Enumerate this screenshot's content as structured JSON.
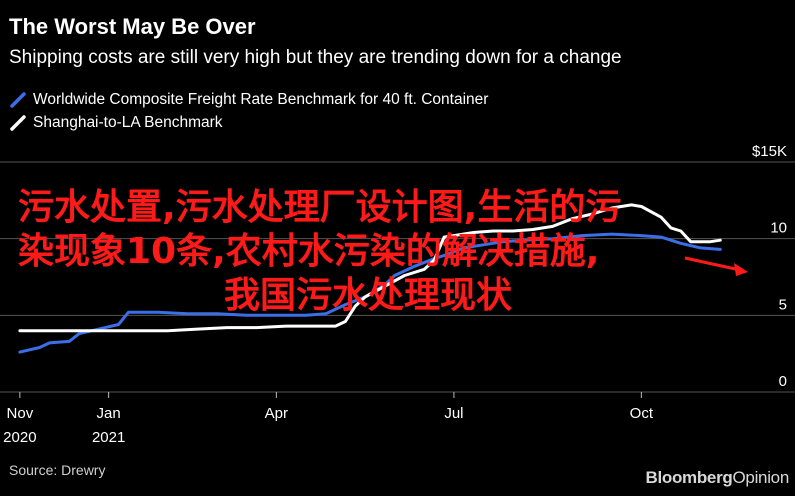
{
  "header": {
    "title": "The Worst May Be Over",
    "subtitle": "Shipping costs are still very high but they are trending down for a change"
  },
  "legend": [
    {
      "label": "Worldwide Composite Freight Rate Benchmark for 40 ft. Container",
      "color": "#3a6fe8"
    },
    {
      "label": "Shanghai-to-LA Benchmark",
      "color": "#ffffff"
    }
  ],
  "footer": {
    "source": "Source: Drewry",
    "brand_bold": "Bloomberg",
    "brand_light": "Opinion"
  },
  "overlay": {
    "line1": "污水处置,污水处理厂设计图,生活的污",
    "line2": "染现象10条,农村水污染的解决措施,",
    "line3": "我国污水处理现状",
    "color": "#ff1a1a"
  },
  "chart_data": {
    "type": "line",
    "title": "The Worst May Be Over",
    "subtitle": "Shipping costs are still very high but they are trending down for a change",
    "x_unit": "weeks from Nov 2020",
    "x_ticks": [
      {
        "x": 0,
        "label": "Nov",
        "sublabel": "2020"
      },
      {
        "x": 9,
        "label": "Jan",
        "sublabel": "2021"
      },
      {
        "x": 26,
        "label": "Apr",
        "sublabel": ""
      },
      {
        "x": 44,
        "label": "Jul",
        "sublabel": ""
      },
      {
        "x": 63,
        "label": "Oct",
        "sublabel": ""
      }
    ],
    "xlim": [
      -1,
      73
    ],
    "ylim": [
      0,
      15
    ],
    "y_ticks": [
      {
        "v": 0,
        "label": "0"
      },
      {
        "v": 5,
        "label": "5"
      },
      {
        "v": 10,
        "label": "10"
      },
      {
        "v": 15,
        "label": "$15K"
      }
    ],
    "grid": true,
    "legend_position": "top-left",
    "series": [
      {
        "name": "Worldwide Composite Freight Rate Benchmark for 40 ft. Container",
        "color": "#3a6fe8",
        "points": [
          [
            0,
            2.6
          ],
          [
            2,
            2.9
          ],
          [
            3,
            3.2
          ],
          [
            5,
            3.3
          ],
          [
            6,
            3.8
          ],
          [
            8,
            4.1
          ],
          [
            10,
            4.4
          ],
          [
            11,
            5.2
          ],
          [
            14,
            5.2
          ],
          [
            17,
            5.1
          ],
          [
            20,
            5.1
          ],
          [
            23,
            5.0
          ],
          [
            26,
            5.0
          ],
          [
            29,
            5.0
          ],
          [
            31,
            5.1
          ],
          [
            33,
            5.7
          ],
          [
            35,
            6.2
          ],
          [
            37,
            7.0
          ],
          [
            38,
            7.6
          ],
          [
            40,
            8.2
          ],
          [
            42,
            8.7
          ],
          [
            43,
            8.9
          ],
          [
            45,
            9.4
          ],
          [
            47,
            9.6
          ],
          [
            49,
            9.8
          ],
          [
            51,
            9.9
          ],
          [
            54,
            10.0
          ],
          [
            57,
            10.2
          ],
          [
            60,
            10.3
          ],
          [
            63,
            10.2
          ],
          [
            65,
            10.1
          ],
          [
            67,
            9.7
          ],
          [
            69,
            9.4
          ],
          [
            71,
            9.3
          ]
        ]
      },
      {
        "name": "Shanghai-to-LA Benchmark",
        "color": "#ffffff",
        "points": [
          [
            0,
            4.0
          ],
          [
            3,
            4.0
          ],
          [
            6,
            4.0
          ],
          [
            9,
            4.0
          ],
          [
            12,
            4.0
          ],
          [
            15,
            4.0
          ],
          [
            18,
            4.1
          ],
          [
            21,
            4.2
          ],
          [
            24,
            4.2
          ],
          [
            27,
            4.3
          ],
          [
            30,
            4.3
          ],
          [
            32,
            4.3
          ],
          [
            33,
            4.6
          ],
          [
            34,
            5.6
          ],
          [
            35,
            6.2
          ],
          [
            37,
            6.9
          ],
          [
            39,
            7.6
          ],
          [
            41,
            8.0
          ],
          [
            42,
            8.6
          ],
          [
            43,
            10.1
          ],
          [
            44,
            10.2
          ],
          [
            46,
            10.4
          ],
          [
            48,
            10.5
          ],
          [
            50,
            10.5
          ],
          [
            52,
            10.6
          ],
          [
            54,
            10.8
          ],
          [
            56,
            11.3
          ],
          [
            58,
            11.6
          ],
          [
            60,
            12.0
          ],
          [
            62,
            12.2
          ],
          [
            63,
            12.1
          ],
          [
            65,
            11.4
          ],
          [
            66,
            10.7
          ],
          [
            67,
            10.5
          ],
          [
            68,
            9.8
          ],
          [
            70,
            9.8
          ],
          [
            71,
            9.9
          ]
        ]
      }
    ]
  }
}
